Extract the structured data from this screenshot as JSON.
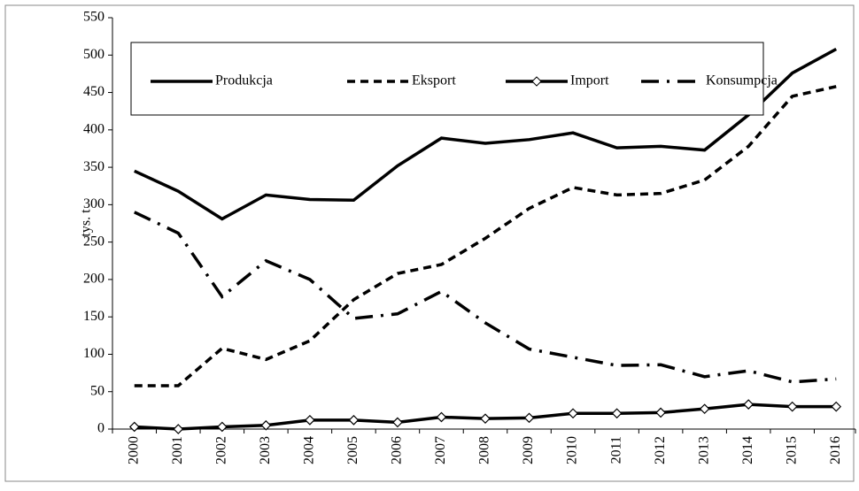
{
  "chart_data": {
    "type": "line",
    "y_label": "tys. t",
    "categories": [
      "2000",
      "2001",
      "2002",
      "2003",
      "2004",
      "2005",
      "2006",
      "2007",
      "2008",
      "2009",
      "2010",
      "2011",
      "2012",
      "2013",
      "2014",
      "2015",
      "2016"
    ],
    "series": [
      {
        "name": "Produkcja",
        "color": "#000000",
        "dash": "solid",
        "values": [
          345,
          318,
          281,
          313,
          307,
          306,
          352,
          389,
          382,
          387,
          396,
          376,
          378,
          373,
          420,
          476,
          508
        ]
      },
      {
        "name": "Eksport",
        "color": "#000000",
        "dash": "dashed",
        "values": [
          58,
          58,
          108,
          93,
          118,
          173,
          208,
          220,
          255,
          295,
          323,
          313,
          315,
          333,
          378,
          445,
          458
        ]
      },
      {
        "name": "Import",
        "color": "#000000",
        "dash": "solid",
        "marker": "diamond",
        "values": [
          3,
          0,
          3,
          5,
          12,
          12,
          9,
          16,
          14,
          15,
          21,
          21,
          22,
          27,
          33,
          30,
          30
        ]
      },
      {
        "name": "Konsumpcja",
        "color": "#000000",
        "dash": "dashdot",
        "values": [
          290,
          262,
          177,
          225,
          200,
          148,
          154,
          184,
          142,
          107,
          96,
          85,
          86,
          70,
          78,
          63,
          67
        ]
      }
    ],
    "ylim": [
      0,
      550
    ],
    "yticks": [
      0,
      50,
      100,
      150,
      200,
      250,
      300,
      350,
      400,
      450,
      500,
      550
    ],
    "legend": "top"
  }
}
